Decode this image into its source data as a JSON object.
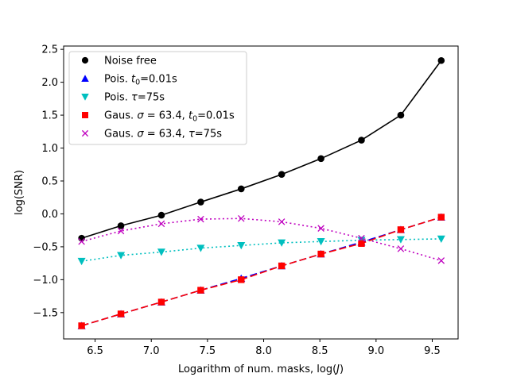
{
  "chart_data": {
    "type": "line",
    "title": "",
    "xlabel_prefix": "Logarithm of num. masks, log(",
    "xlabel_var": "J",
    "xlabel_suffix": ")",
    "ylabel": "log(SNR)",
    "xlim": [
      6.22,
      9.73
    ],
    "ylim": [
      -1.9,
      2.55
    ],
    "xticks": [
      6.5,
      7.0,
      7.5,
      8.0,
      8.5,
      9.0,
      9.5
    ],
    "yticks": [
      -1.5,
      -1.0,
      -0.5,
      0.0,
      0.5,
      1.0,
      1.5,
      2.0,
      2.5
    ],
    "grid": false,
    "legend_position": "top-left",
    "x": [
      6.38,
      6.73,
      7.09,
      7.44,
      7.8,
      8.16,
      8.51,
      8.87,
      9.22,
      9.58
    ],
    "series": [
      {
        "name": "Noise free",
        "legend_parts": [
          {
            "t": "Noise free",
            "style": "normal"
          }
        ],
        "color": "#000000",
        "marker": "circle",
        "line": "solid",
        "values": [
          -0.37,
          -0.18,
          -0.02,
          0.18,
          0.38,
          0.6,
          0.84,
          1.12,
          1.5,
          2.33
        ]
      },
      {
        "name": "Pois. t0=0.01s",
        "legend_parts": [
          {
            "t": "Pois. ",
            "style": "normal"
          },
          {
            "t": "t",
            "style": "italic"
          },
          {
            "t": "0",
            "style": "sub"
          },
          {
            "t": "=0.01s",
            "style": "normal"
          }
        ],
        "color": "#0000ff",
        "marker": "triangle-up",
        "line": "dashed",
        "values": [
          -1.7,
          -1.52,
          -1.34,
          -1.16,
          -0.98,
          -0.79,
          -0.61,
          -0.43,
          -0.24,
          -0.05
        ]
      },
      {
        "name": "Pois. τ=75s",
        "legend_parts": [
          {
            "t": "Pois. ",
            "style": "normal"
          },
          {
            "t": "τ",
            "style": "italic"
          },
          {
            "t": "=75s",
            "style": "normal"
          }
        ],
        "color": "#00bfbf",
        "marker": "triangle-down",
        "line": "dotted",
        "values": [
          -0.72,
          -0.63,
          -0.58,
          -0.52,
          -0.48,
          -0.44,
          -0.42,
          -0.4,
          -0.39,
          -0.38
        ]
      },
      {
        "name": "Gaus. σ=63.4, t0=0.01s",
        "legend_parts": [
          {
            "t": "Gaus. ",
            "style": "normal"
          },
          {
            "t": "σ",
            "style": "italic"
          },
          {
            "t": " = 63.4, ",
            "style": "normal"
          },
          {
            "t": "t",
            "style": "italic"
          },
          {
            "t": "0",
            "style": "sub"
          },
          {
            "t": "=0.01s",
            "style": "normal"
          }
        ],
        "color": "#ff0000",
        "marker": "square",
        "line": "dashed",
        "values": [
          -1.7,
          -1.52,
          -1.34,
          -1.16,
          -1.0,
          -0.79,
          -0.61,
          -0.45,
          -0.24,
          -0.05
        ]
      },
      {
        "name": "Gaus. σ=63.4, τ=75s",
        "legend_parts": [
          {
            "t": "Gaus. ",
            "style": "normal"
          },
          {
            "t": "σ",
            "style": "italic"
          },
          {
            "t": " = 63.4, ",
            "style": "normal"
          },
          {
            "t": "τ",
            "style": "italic"
          },
          {
            "t": "=75s",
            "style": "normal"
          }
        ],
        "color": "#bf00bf",
        "marker": "x",
        "line": "dotted",
        "values": [
          -0.42,
          -0.26,
          -0.15,
          -0.08,
          -0.07,
          -0.12,
          -0.22,
          -0.37,
          -0.53,
          -0.71
        ]
      }
    ]
  }
}
